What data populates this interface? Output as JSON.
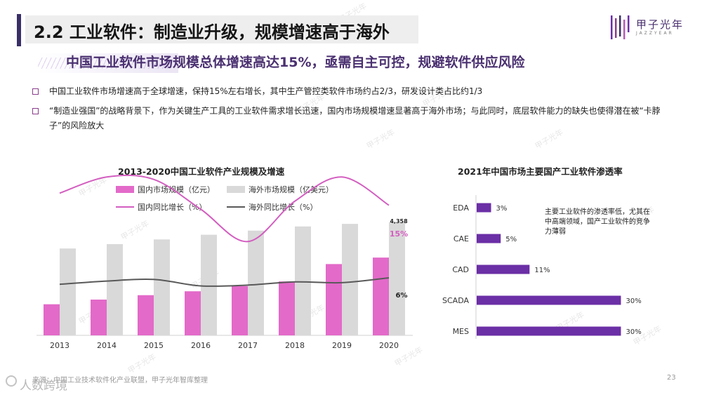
{
  "header": {
    "title": "2.2 工业软件：制造业升级，规模增速高于海外",
    "subtitle": "中国工业软件市场规模总体增速高达15%，亟需自主可控，规避软件供应风险"
  },
  "logo": {
    "name": "甲子光年",
    "sub": "JAZZYEAR"
  },
  "bullets": [
    "中国工业软件市场增速高于全球增速，保持15%左右增长，其中生产管控类软件市场约占2/3，研发设计类占比约1/3",
    "“制造业强国”的战略背景下，作为关键生产工具的工业软件需求增长迅速，国内市场规模增速显著高于海外市场；与此同时，底层软件能力的缺失也使得潜在被“卡脖子”的风险放大"
  ],
  "watermark": "甲子光年",
  "colors": {
    "domestic_bar": "#e36ac9",
    "overseas_bar": "#d9d9d9",
    "domestic_line": "#d35ec0",
    "overseas_line": "#595959",
    "penetration_bar": "#6b2fa6",
    "accent": "#4a3070"
  },
  "chart_data": [
    {
      "type": "bar",
      "title": "2013-2020中国工业软件产业规模及增速",
      "categories": [
        "2013",
        "2014",
        "2015",
        "2016",
        "2017",
        "2018",
        "2019",
        "2020"
      ],
      "series": [
        {
          "name": "国内市场规模（亿元）",
          "kind": "bar",
          "values": [
            1200,
            1380,
            1550,
            1700,
            1900,
            2080,
            2750,
            3000
          ]
        },
        {
          "name": "海外市场规模（亿美元）",
          "kind": "bar",
          "values": [
            3350,
            3520,
            3700,
            3880,
            4040,
            4200,
            4300,
            4358
          ]
        },
        {
          "name": "国内同比增长（%）",
          "kind": "line",
          "values": [
            16.5,
            18.5,
            18.2,
            14.5,
            10.5,
            15.5,
            18.5,
            15
          ]
        },
        {
          "name": "海外同比增长（%）",
          "kind": "line",
          "values": [
            5.2,
            5.6,
            5.8,
            5.0,
            5.1,
            5.5,
            5.4,
            6
          ]
        }
      ],
      "labels": {
        "last_overseas_value": "4,358",
        "last_domestic_growth": "15%",
        "last_overseas_growth": "6%"
      },
      "legend_position": "top"
    },
    {
      "type": "bar",
      "orientation": "horizontal",
      "title": "2021年中国市场主要国产工业软件渗透率",
      "categories": [
        "EDA",
        "CAE",
        "CAD",
        "SCADA",
        "MES"
      ],
      "values": [
        3,
        5,
        11,
        30,
        30
      ],
      "value_labels": [
        "3%",
        "5%",
        "11%",
        "30%",
        "30%"
      ],
      "annotation": "主要工业软件的渗透率低，尤其在中高端领域，国产工业软件的竞争力薄弱"
    }
  ],
  "footer": {
    "source": "来源：中国工业技术软件化产业联盟，甲子光年智库整理",
    "page": "23",
    "brand": "人数跨境"
  }
}
